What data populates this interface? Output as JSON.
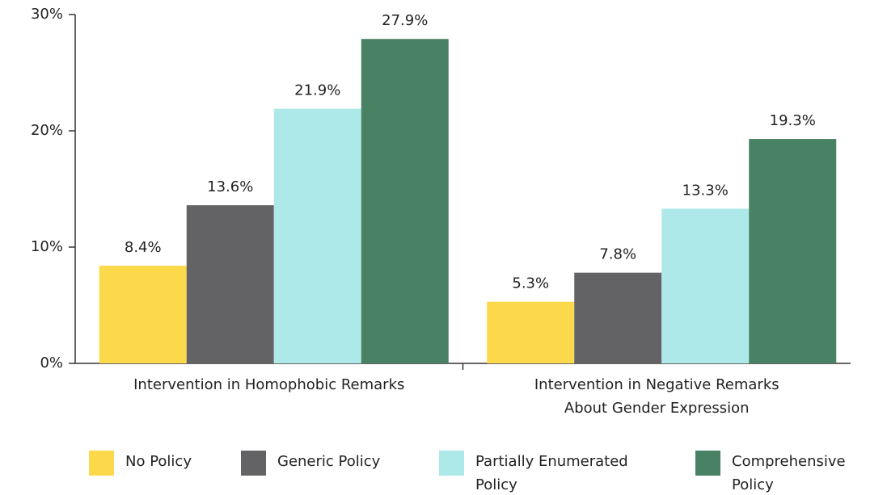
{
  "chart_data": {
    "type": "bar",
    "categories": [
      "Intervention in Homophobic Remarks",
      "Intervention in Negative Remarks\nAbout Gender Expression"
    ],
    "series": [
      {
        "name": "No Policy",
        "color": "#fcd94a",
        "values": [
          8.4,
          5.3
        ],
        "value_labels": [
          "8.4%",
          "5.3%"
        ]
      },
      {
        "name": "Generic Policy",
        "color": "#636366",
        "values": [
          13.6,
          7.8
        ],
        "value_labels": [
          "13.6%",
          "7.8%"
        ]
      },
      {
        "name": "Partially Enumerated\nPolicy",
        "color": "#aee9e9",
        "values": [
          21.9,
          13.3
        ],
        "value_labels": [
          "21.9%",
          "13.3%"
        ]
      },
      {
        "name": "Comprehensive\nPolicy",
        "color": "#488163",
        "values": [
          27.9,
          19.3
        ],
        "value_labels": [
          "27.9%",
          "19.3%"
        ]
      }
    ],
    "ylim": [
      0,
      30
    ],
    "yticks": [
      {
        "value": 0,
        "label": "0%"
      },
      {
        "value": 10,
        "label": "10%"
      },
      {
        "value": 20,
        "label": "20%"
      },
      {
        "value": 30,
        "label": "30%"
      }
    ],
    "grid": false,
    "legend": "bottom"
  }
}
